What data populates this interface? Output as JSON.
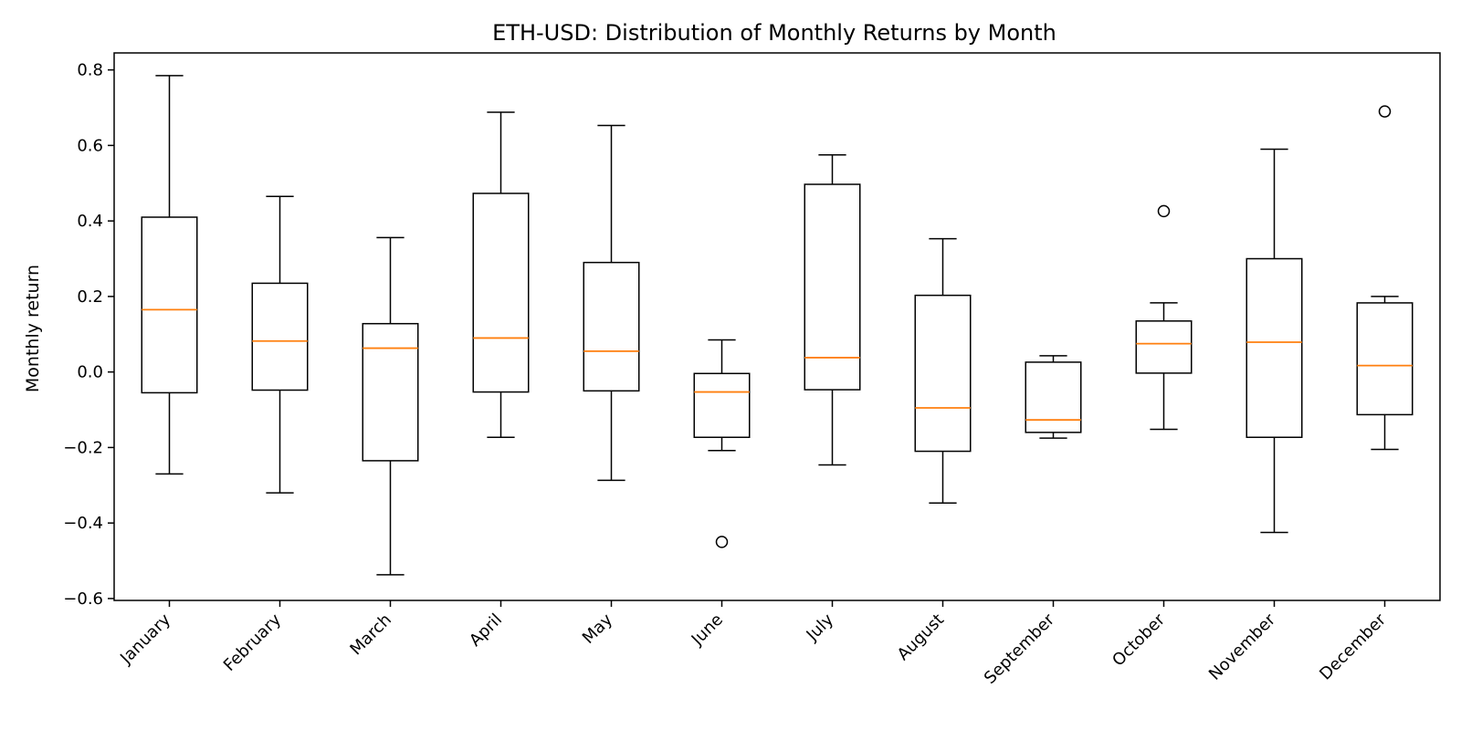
{
  "chart_data": {
    "type": "box",
    "title": "ETH-USD: Distribution of Monthly Returns by Month",
    "xlabel": "",
    "ylabel": "Monthly return",
    "ylim": [
      -0.605,
      0.845
    ],
    "yticks": [
      -0.6,
      -0.4,
      -0.2,
      0.0,
      0.2,
      0.4,
      0.6,
      0.8
    ],
    "ytick_labels": [
      "−0.6",
      "−0.4",
      "−0.2",
      "0.0",
      "0.2",
      "0.4",
      "0.6",
      "0.8"
    ],
    "categories": [
      "January",
      "February",
      "March",
      "April",
      "May",
      "June",
      "July",
      "August",
      "September",
      "October",
      "November",
      "December"
    ],
    "boxes": [
      {
        "whislo": -0.27,
        "q1": -0.055,
        "med": 0.165,
        "q3": 0.41,
        "whishi": 0.785,
        "fliers": []
      },
      {
        "whislo": -0.32,
        "q1": -0.048,
        "med": 0.082,
        "q3": 0.235,
        "whishi": 0.465,
        "fliers": []
      },
      {
        "whislo": -0.537,
        "q1": -0.235,
        "med": 0.063,
        "q3": 0.128,
        "whishi": 0.356,
        "fliers": []
      },
      {
        "whislo": -0.173,
        "q1": -0.053,
        "med": 0.09,
        "q3": 0.473,
        "whishi": 0.688,
        "fliers": []
      },
      {
        "whislo": -0.287,
        "q1": -0.05,
        "med": 0.055,
        "q3": 0.29,
        "whishi": 0.653,
        "fliers": []
      },
      {
        "whislo": -0.208,
        "q1": -0.173,
        "med": -0.053,
        "q3": -0.004,
        "whishi": 0.085,
        "fliers": [
          -0.45
        ]
      },
      {
        "whislo": -0.246,
        "q1": -0.047,
        "med": 0.038,
        "q3": 0.497,
        "whishi": 0.575,
        "fliers": []
      },
      {
        "whislo": -0.347,
        "q1": -0.21,
        "med": -0.095,
        "q3": 0.203,
        "whishi": 0.353,
        "fliers": []
      },
      {
        "whislo": -0.175,
        "q1": -0.16,
        "med": -0.127,
        "q3": 0.026,
        "whishi": 0.043,
        "fliers": []
      },
      {
        "whislo": -0.152,
        "q1": -0.003,
        "med": 0.075,
        "q3": 0.135,
        "whishi": 0.183,
        "fliers": [
          0.426
        ]
      },
      {
        "whislo": -0.425,
        "q1": -0.173,
        "med": 0.079,
        "q3": 0.3,
        "whishi": 0.59,
        "fliers": []
      },
      {
        "whislo": -0.205,
        "q1": -0.113,
        "med": 0.017,
        "q3": 0.183,
        "whishi": 0.2,
        "fliers": [
          0.69
        ]
      }
    ],
    "colors": {
      "box": "#000000",
      "median": "#ff7f0e",
      "flier": "#000000"
    },
    "grid": false,
    "legend": "none"
  }
}
